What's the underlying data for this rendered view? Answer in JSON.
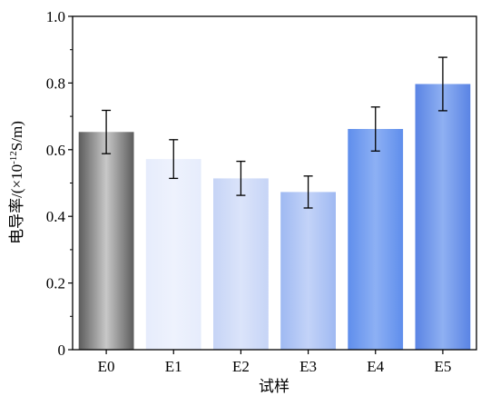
{
  "chart_data": {
    "type": "bar",
    "title": "",
    "xlabel": "试样",
    "ylabel": {
      "main": "电导率/(×10",
      "sup": "-12",
      "tail": "S/m)"
    },
    "categories": [
      "E0",
      "E1",
      "E2",
      "E3",
      "E4",
      "E5"
    ],
    "values": [
      0.653,
      0.572,
      0.514,
      0.473,
      0.662,
      0.797
    ],
    "errors": [
      0.065,
      0.058,
      0.051,
      0.048,
      0.066,
      0.08
    ],
    "ylim": [
      0,
      1.0
    ],
    "yticks": [
      "0",
      "0.2",
      "0.4",
      "0.6",
      "0.8",
      "1.0"
    ],
    "grid": false,
    "bar_colors": [
      [
        "#5c5c5c",
        "#c8c8c8",
        "#5c5c5c"
      ],
      [
        "#e6ecfc",
        "#eef2fd",
        "#e6ecfc"
      ],
      [
        "#c6d4f6",
        "#dbe4fa",
        "#c6d4f6"
      ],
      [
        "#9fb9f2",
        "#c3d3f8",
        "#9fb9f2"
      ],
      [
        "#5f8eec",
        "#8db0f4",
        "#5f8eec"
      ],
      [
        "#5a84e4",
        "#8fb0f2",
        "#5a84e4"
      ]
    ]
  }
}
